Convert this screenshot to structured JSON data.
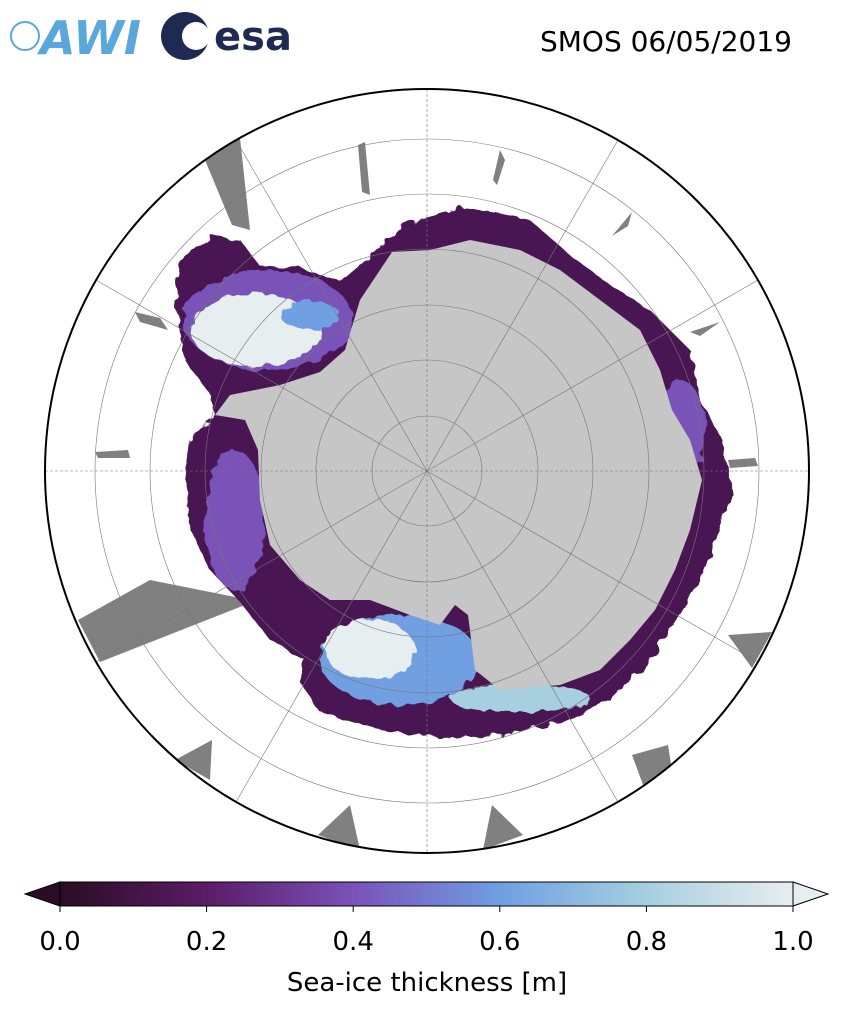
{
  "header": {
    "logos": [
      "AWI",
      "esa"
    ],
    "title": "SMOS 06/05/2019"
  },
  "colorbar": {
    "label": "Sea-ice thickness [m]",
    "lim": [
      0,
      1
    ],
    "ticks": [
      {
        "value": 0,
        "label": "0.0"
      },
      {
        "value": 0.2,
        "label": "0.2"
      },
      {
        "value": 0.4,
        "label": "0.4"
      },
      {
        "value": 0.6,
        "label": "0.6"
      },
      {
        "value": 0.8,
        "label": "0.8"
      },
      {
        "value": 1,
        "label": "1.0"
      }
    ],
    "colors": [
      "#2a0d24",
      "#5b1b68",
      "#7a52b8",
      "#6f9fe2",
      "#a6cfe0",
      "#e7eeef"
    ]
  }
}
